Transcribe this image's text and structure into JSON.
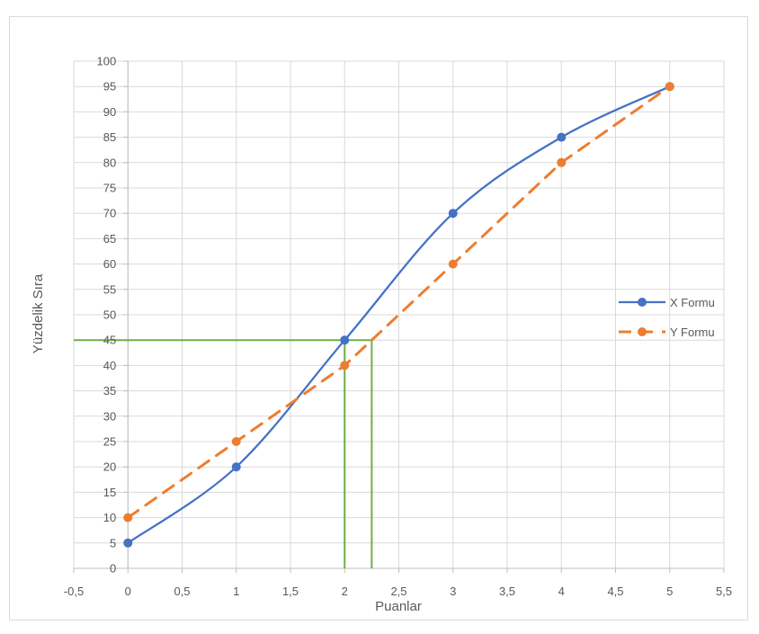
{
  "chart_data": {
    "type": "line",
    "title": "",
    "xlabel": "Puanlar",
    "ylabel": "Yüzdelik Sıra",
    "xlim": [
      -0.5,
      5.5
    ],
    "ylim": [
      0,
      100
    ],
    "x_ticks": [
      "-0,5",
      "0",
      "0,5",
      "1",
      "1,5",
      "2",
      "2,5",
      "3",
      "3,5",
      "4",
      "4,5",
      "5",
      "5,5"
    ],
    "y_ticks": [
      "0",
      "5",
      "10",
      "15",
      "20",
      "25",
      "30",
      "35",
      "40",
      "45",
      "50",
      "55",
      "60",
      "65",
      "70",
      "75",
      "80",
      "85",
      "90",
      "95",
      "100"
    ],
    "grid": true,
    "legend_position": "right",
    "series": [
      {
        "name": "X Formu",
        "color": "#4472c4",
        "style": "solid-smooth",
        "x": [
          0,
          1,
          2,
          3,
          4,
          5
        ],
        "y": [
          5,
          20,
          45,
          70,
          85,
          95
        ]
      },
      {
        "name": "Y Formu",
        "color": "#ed7d31",
        "style": "dashed",
        "x": [
          0,
          1,
          2,
          3,
          4,
          5
        ],
        "y": [
          10,
          25,
          40,
          60,
          80,
          95
        ]
      }
    ],
    "guide_lines": {
      "color": "#70ad47",
      "segments": [
        {
          "x": [
            -0.5,
            2.25
          ],
          "y": [
            45,
            45
          ]
        },
        {
          "x": [
            2,
            2
          ],
          "y": [
            45,
            0
          ]
        },
        {
          "x": [
            2.25,
            2.25
          ],
          "y": [
            45,
            0
          ]
        }
      ]
    }
  }
}
